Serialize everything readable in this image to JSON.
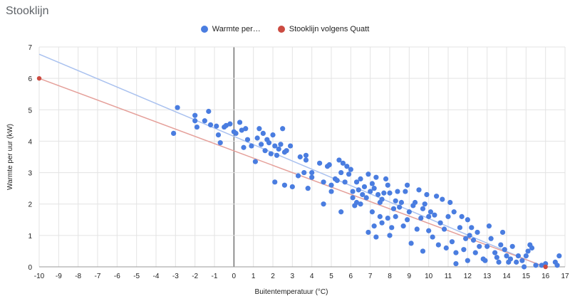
{
  "header": {
    "title": "Stooklijn"
  },
  "colors": {
    "series1": "#4a7de0",
    "series2": "#cc4b41",
    "line1": "#a9c1ef",
    "line2": "#e5a09a",
    "grid": "#e3e3e3",
    "zero_axis": "#555555"
  },
  "chart_data": {
    "type": "scatter",
    "xlabel": "Buitentemperatuur (°C)",
    "ylabel": "Warmte per uur (kW)",
    "xlim": [
      -10,
      17
    ],
    "ylim": [
      0,
      7
    ],
    "x_ticks": [
      "-10",
      "-9",
      "-8",
      "-7",
      "-6",
      "-5",
      "-4",
      "-3",
      "-2",
      "-1",
      "0",
      "1",
      "2",
      "3",
      "4",
      "5",
      "6",
      "7",
      "8",
      "9",
      "10",
      "11",
      "12",
      "13",
      "14",
      "15",
      "16",
      "17"
    ],
    "y_ticks": [
      "0",
      "1",
      "2",
      "3",
      "4",
      "5",
      "6",
      "7"
    ],
    "grid": true,
    "legend_position": "top",
    "series": [
      {
        "name": "Warmte per…",
        "trendline": [
          [
            -10,
            6.77
          ],
          [
            16,
            -0.03
          ]
        ],
        "points": [
          [
            -3.1,
            4.25
          ],
          [
            -2.9,
            5.07
          ],
          [
            -2.0,
            4.82
          ],
          [
            -2.0,
            4.65
          ],
          [
            -1.9,
            4.45
          ],
          [
            -1.5,
            4.65
          ],
          [
            -1.3,
            4.95
          ],
          [
            -1.2,
            4.52
          ],
          [
            -0.9,
            4.48
          ],
          [
            -0.8,
            4.2
          ],
          [
            -0.7,
            3.95
          ],
          [
            -0.5,
            4.45
          ],
          [
            -0.4,
            4.5
          ],
          [
            -0.2,
            4.55
          ],
          [
            0.0,
            4.3
          ],
          [
            0.1,
            4.25
          ],
          [
            0.3,
            4.6
          ],
          [
            0.4,
            4.35
          ],
          [
            0.6,
            4.4
          ],
          [
            0.5,
            3.8
          ],
          [
            0.7,
            4.05
          ],
          [
            0.9,
            3.85
          ],
          [
            1.1,
            3.35
          ],
          [
            1.2,
            4.1
          ],
          [
            1.3,
            4.4
          ],
          [
            1.4,
            3.9
          ],
          [
            1.5,
            4.25
          ],
          [
            1.6,
            3.7
          ],
          [
            1.7,
            4.05
          ],
          [
            1.8,
            3.95
          ],
          [
            1.9,
            3.6
          ],
          [
            2.0,
            4.2
          ],
          [
            2.1,
            3.85
          ],
          [
            2.2,
            3.55
          ],
          [
            2.3,
            3.75
          ],
          [
            2.4,
            3.9
          ],
          [
            2.5,
            4.4
          ],
          [
            2.6,
            3.65
          ],
          [
            2.7,
            3.7
          ],
          [
            2.9,
            3.85
          ],
          [
            2.1,
            2.7
          ],
          [
            2.6,
            2.6
          ],
          [
            3.0,
            2.55
          ],
          [
            3.3,
            2.9
          ],
          [
            3.4,
            3.5
          ],
          [
            3.6,
            3.0
          ],
          [
            3.7,
            3.55
          ],
          [
            3.7,
            3.4
          ],
          [
            3.8,
            2.5
          ],
          [
            4.0,
            2.85
          ],
          [
            4.0,
            3.0
          ],
          [
            4.4,
            3.3
          ],
          [
            4.6,
            2.7
          ],
          [
            4.6,
            2.0
          ],
          [
            4.8,
            3.2
          ],
          [
            4.9,
            3.25
          ],
          [
            5.0,
            2.4
          ],
          [
            5.0,
            2.6
          ],
          [
            5.2,
            2.8
          ],
          [
            5.3,
            2.75
          ],
          [
            5.4,
            3.4
          ],
          [
            5.5,
            3.0
          ],
          [
            5.5,
            1.75
          ],
          [
            5.6,
            3.3
          ],
          [
            5.7,
            2.7
          ],
          [
            5.8,
            3.2
          ],
          [
            5.9,
            2.95
          ],
          [
            6.0,
            3.1
          ],
          [
            6.1,
            2.4
          ],
          [
            6.1,
            2.2
          ],
          [
            6.2,
            1.95
          ],
          [
            6.3,
            2.05
          ],
          [
            6.3,
            2.7
          ],
          [
            6.4,
            2.45
          ],
          [
            6.5,
            2.8
          ],
          [
            6.5,
            2.0
          ],
          [
            6.6,
            2.3
          ],
          [
            6.7,
            2.55
          ],
          [
            6.8,
            2.2
          ],
          [
            6.9,
            2.95
          ],
          [
            6.9,
            1.1
          ],
          [
            7.0,
            2.4
          ],
          [
            7.1,
            1.75
          ],
          [
            7.1,
            2.65
          ],
          [
            7.2,
            2.5
          ],
          [
            7.2,
            1.3
          ],
          [
            7.3,
            2.85
          ],
          [
            7.3,
            0.95
          ],
          [
            7.4,
            2.3
          ],
          [
            7.5,
            1.6
          ],
          [
            7.5,
            2.05
          ],
          [
            7.6,
            2.15
          ],
          [
            7.6,
            1.4
          ],
          [
            7.7,
            2.35
          ],
          [
            7.8,
            2.8
          ],
          [
            7.9,
            2.6
          ],
          [
            7.9,
            1.55
          ],
          [
            8.0,
            1.0
          ],
          [
            8.0,
            2.35
          ],
          [
            8.1,
            1.25
          ],
          [
            8.2,
            1.85
          ],
          [
            8.3,
            2.1
          ],
          [
            8.3,
            1.6
          ],
          [
            8.4,
            2.4
          ],
          [
            8.5,
            1.9
          ],
          [
            8.6,
            2.05
          ],
          [
            8.7,
            1.3
          ],
          [
            8.8,
            2.4
          ],
          [
            8.9,
            2.6
          ],
          [
            8.9,
            1.5
          ],
          [
            9.0,
            1.75
          ],
          [
            9.1,
            0.75
          ],
          [
            9.2,
            1.95
          ],
          [
            9.3,
            2.05
          ],
          [
            9.4,
            1.2
          ],
          [
            9.5,
            2.45
          ],
          [
            9.6,
            1.55
          ],
          [
            9.7,
            1.85
          ],
          [
            9.7,
            0.5
          ],
          [
            9.8,
            2.0
          ],
          [
            9.9,
            2.3
          ],
          [
            10.0,
            1.6
          ],
          [
            10.0,
            1.15
          ],
          [
            10.1,
            1.75
          ],
          [
            10.2,
            0.95
          ],
          [
            10.3,
            1.65
          ],
          [
            10.4,
            2.25
          ],
          [
            10.5,
            0.7
          ],
          [
            10.6,
            1.4
          ],
          [
            10.7,
            2.15
          ],
          [
            10.8,
            1.2
          ],
          [
            10.9,
            0.6
          ],
          [
            11.0,
            1.6
          ],
          [
            11.1,
            2.05
          ],
          [
            11.2,
            0.8
          ],
          [
            11.3,
            1.75
          ],
          [
            11.4,
            0.45
          ],
          [
            11.4,
            0.1
          ],
          [
            11.6,
            1.25
          ],
          [
            11.7,
            1.6
          ],
          [
            11.8,
            0.55
          ],
          [
            11.9,
            0.9
          ],
          [
            12.0,
            1.5
          ],
          [
            12.0,
            0.2
          ],
          [
            12.1,
            1.0
          ],
          [
            12.2,
            1.25
          ],
          [
            12.3,
            0.85
          ],
          [
            12.4,
            0.45
          ],
          [
            12.5,
            1.1
          ],
          [
            12.6,
            0.65
          ],
          [
            12.8,
            0.25
          ],
          [
            12.9,
            0.2
          ],
          [
            13.0,
            0.65
          ],
          [
            13.1,
            1.3
          ],
          [
            13.2,
            0.9
          ],
          [
            13.4,
            0.45
          ],
          [
            13.5,
            0.3
          ],
          [
            13.6,
            0.15
          ],
          [
            13.7,
            0.7
          ],
          [
            13.8,
            1.1
          ],
          [
            13.9,
            0.55
          ],
          [
            14.0,
            0.35
          ],
          [
            14.1,
            0.15
          ],
          [
            14.2,
            0.25
          ],
          [
            14.3,
            0.65
          ],
          [
            14.5,
            0.15
          ],
          [
            14.6,
            0.35
          ],
          [
            14.8,
            0.2
          ],
          [
            14.9,
            0.0
          ],
          [
            15.0,
            0.35
          ],
          [
            15.1,
            0.5
          ],
          [
            15.2,
            0.7
          ],
          [
            15.3,
            0.6
          ],
          [
            15.5,
            0.05
          ],
          [
            15.8,
            0.05
          ],
          [
            16.0,
            0.1
          ],
          [
            16.5,
            0.15
          ],
          [
            16.6,
            0.05
          ],
          [
            16.7,
            0.35
          ]
        ]
      },
      {
        "name": "Stooklijn volgens Quatt",
        "trendline": [
          [
            -10,
            6.0
          ],
          [
            16,
            0.0
          ]
        ],
        "points": [
          [
            -10,
            6.0
          ],
          [
            16,
            0.0
          ]
        ]
      }
    ]
  }
}
